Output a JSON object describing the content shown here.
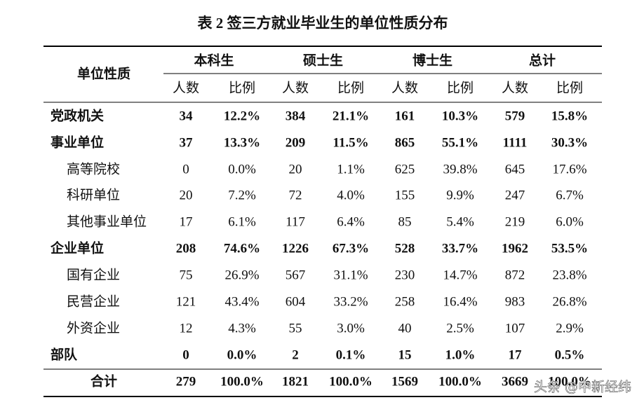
{
  "title": "表 2 签三方就业毕业生的单位性质分布",
  "table": {
    "row_header": "单位性质",
    "groups": [
      "本科生",
      "硕士生",
      "博士生",
      "总计"
    ],
    "subheaders": [
      "人数",
      "比例",
      "人数",
      "比例",
      "人数",
      "比例",
      "人数",
      "比例"
    ],
    "rows": [
      {
        "label": "党政机关",
        "bold": true,
        "cells": [
          "34",
          "12.2%",
          "384",
          "21.1%",
          "161",
          "10.3%",
          "579",
          "15.8%"
        ]
      },
      {
        "label": "事业单位",
        "bold": true,
        "cells": [
          "37",
          "13.3%",
          "209",
          "11.5%",
          "865",
          "55.1%",
          "1111",
          "30.3%"
        ]
      },
      {
        "label": "高等院校",
        "bold": false,
        "cells": [
          "0",
          "0.0%",
          "20",
          "1.1%",
          "625",
          "39.8%",
          "645",
          "17.6%"
        ]
      },
      {
        "label": "科研单位",
        "bold": false,
        "cells": [
          "20",
          "7.2%",
          "72",
          "4.0%",
          "155",
          "9.9%",
          "247",
          "6.7%"
        ]
      },
      {
        "label": "其他事业单位",
        "bold": false,
        "cells": [
          "17",
          "6.1%",
          "117",
          "6.4%",
          "85",
          "5.4%",
          "219",
          "6.0%"
        ]
      },
      {
        "label": "企业单位",
        "bold": true,
        "cells": [
          "208",
          "74.6%",
          "1226",
          "67.3%",
          "528",
          "33.7%",
          "1962",
          "53.5%"
        ]
      },
      {
        "label": "国有企业",
        "bold": false,
        "cells": [
          "75",
          "26.9%",
          "567",
          "31.1%",
          "230",
          "14.7%",
          "872",
          "23.8%"
        ]
      },
      {
        "label": "民营企业",
        "bold": false,
        "cells": [
          "121",
          "43.4%",
          "604",
          "33.2%",
          "258",
          "16.4%",
          "983",
          "26.8%"
        ]
      },
      {
        "label": "外资企业",
        "bold": false,
        "cells": [
          "12",
          "4.3%",
          "55",
          "3.0%",
          "40",
          "2.5%",
          "107",
          "2.9%"
        ]
      },
      {
        "label": "部队",
        "bold": true,
        "cells": [
          "0",
          "0.0%",
          "2",
          "0.1%",
          "15",
          "1.0%",
          "17",
          "0.5%"
        ]
      },
      {
        "label": "合计",
        "bold": true,
        "total": true,
        "cells": [
          "279",
          "100.0%",
          "1821",
          "100.0%",
          "1569",
          "100.0%",
          "3669",
          "100.0%"
        ]
      }
    ]
  },
  "watermark": "头条 @中新经纬"
}
